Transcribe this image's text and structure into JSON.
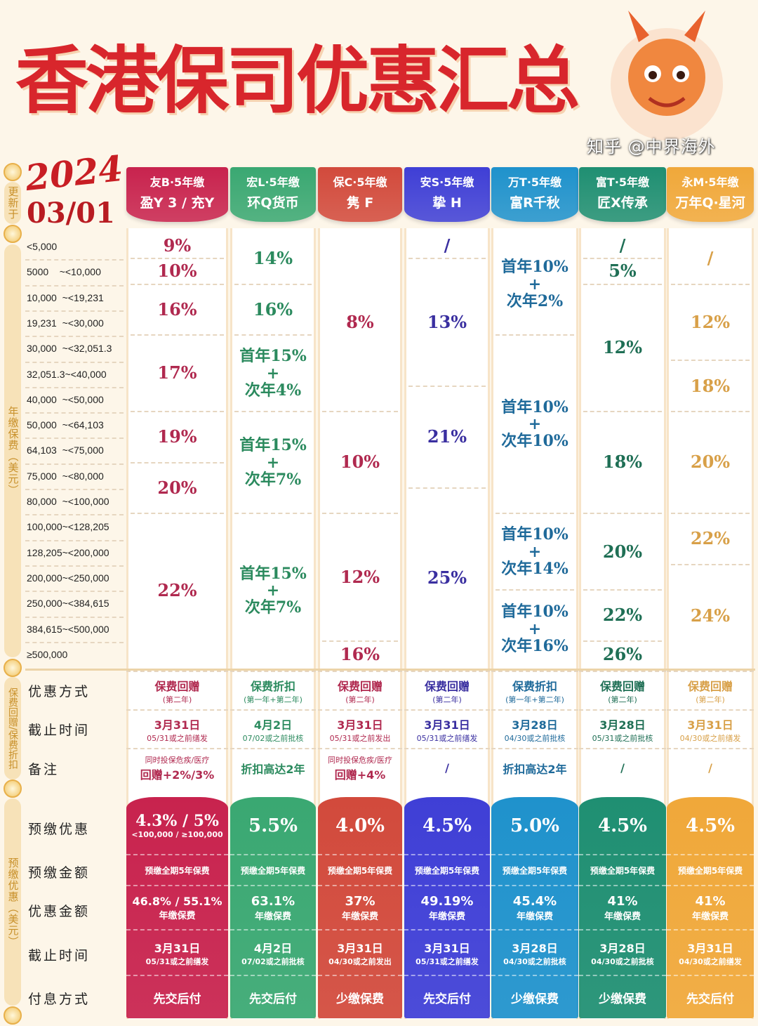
{
  "title": "香港保司优惠汇总",
  "updated_label": "更新于",
  "year": "2024",
  "date": "03/01",
  "section_labels": {
    "annual_premium": "年缴保费（美元）",
    "offers": "保费回赠/保费折扣",
    "prepay": "预缴优惠（美元）"
  },
  "tiers": [
    "<5,000",
    "5000    ~<10,000",
    "10,000  ~<19,231",
    "19,231  ~<30,000",
    "30,000  ~<32,051.3",
    "32,051.3~<40,000",
    "40,000  ~<50,000",
    "50,000  ~<64,103",
    "64,103  ~<75,000",
    "75,000  ~<80,000",
    "80,000  ~<100,000",
    "100,000~<128,205",
    "128,205~<200,000",
    "200,000~<250,000",
    "250,000~<384,615",
    "384,615~<500,000",
    "≥500,000"
  ],
  "row_labels": {
    "offer_type": "优惠方式",
    "deadline": "截止时间",
    "remark": "备注"
  },
  "prepay_labels": {
    "rate": "预缴优惠",
    "amount": "预缴金额",
    "benefit": "优惠金额",
    "deadline": "截止时间",
    "payout": "付息方式"
  },
  "products": [
    {
      "brand": "友B·5年缴",
      "plan": "盈Y 3 / 充Y",
      "color": "#c8234e",
      "text_color": "#b0294f",
      "tiers": [
        {
          "rows": [
            0,
            0
          ],
          "text": "9%"
        },
        {
          "rows": [
            1,
            1
          ],
          "text": "10%"
        },
        {
          "rows": [
            2,
            3
          ],
          "text": "16%"
        },
        {
          "rows": [
            4,
            6
          ],
          "text": "17%"
        },
        {
          "rows": [
            7,
            8
          ],
          "text": "19%"
        },
        {
          "rows": [
            9,
            10
          ],
          "text": "20%"
        },
        {
          "rows": [
            11,
            16
          ],
          "text": "22%"
        }
      ],
      "offer": {
        "type": "保费回赠",
        "note": "(第二年)"
      },
      "deadline": {
        "date": "3月31日",
        "note": "05/31或之前缮发"
      },
      "remark": {
        "small": "同时投保危疾/医疗",
        "big": "回赠+2%/3%"
      },
      "prepay": {
        "rate": "4.3% / 5%",
        "rate_note": "<100,000 / ≥100,000",
        "amount": "预缴全期5年保费",
        "benefit": "46.8% / 55.1%",
        "benefit_note": "年缴保费",
        "date": "3月31日",
        "date_note": "05/31或之前缮发",
        "payout": "先交后付"
      }
    },
    {
      "brand": "宏L·5年缴",
      "plan": "环Q货币",
      "color": "#3aa872",
      "text_color": "#2b8a5e",
      "tiers": [
        {
          "rows": [
            0,
            1
          ],
          "text": "14%"
        },
        {
          "rows": [
            2,
            3
          ],
          "text": "16%"
        },
        {
          "rows": [
            4,
            6
          ],
          "text": "首年15%\n+\n次年4%"
        },
        {
          "rows": [
            7,
            10
          ],
          "text": "首年15%\n+\n次年7%"
        },
        {
          "rows": [
            11,
            16
          ],
          "text": "首年15%\n+\n次年7%"
        }
      ],
      "offer": {
        "type": "保费折扣",
        "note": "(第一年+第二年)"
      },
      "deadline": {
        "date": "4月2日",
        "note": "07/02或之前批核"
      },
      "remark": {
        "small": "",
        "big": "折扣高达2年"
      },
      "prepay": {
        "rate": "5.5%",
        "rate_note": "",
        "amount": "预缴全期5年保费",
        "benefit": "63.1%",
        "benefit_note": "年缴保费",
        "date": "4月2日",
        "date_note": "07/02或之前批核",
        "payout": "先交后付"
      }
    },
    {
      "brand": "保C·5年缴",
      "plan": "隽 F",
      "color": "#d24a3c",
      "text_color": "#b0294f",
      "tiers": [
        {
          "rows": [
            0,
            6
          ],
          "text": "8%"
        },
        {
          "rows": [
            7,
            10
          ],
          "text": "10%"
        },
        {
          "rows": [
            11,
            15
          ],
          "text": "12%"
        },
        {
          "rows": [
            16,
            16
          ],
          "text": "16%"
        }
      ],
      "offer": {
        "type": "保费回赠",
        "note": "(第二年)"
      },
      "deadline": {
        "date": "3月31日",
        "note": "05/31或之前发出"
      },
      "remark": {
        "small": "同时投保危疾/医疗",
        "big": "回赠+4%"
      },
      "prepay": {
        "rate": "4.0%",
        "rate_note": "",
        "amount": "预缴全期5年保费",
        "benefit": "37%",
        "benefit_note": "年缴保费",
        "date": "3月31日",
        "date_note": "04/30或之前发出",
        "payout": "少缴保费"
      }
    },
    {
      "brand": "安S·5年缴",
      "plan": "挚 H",
      "color": "#3f3fd6",
      "text_color": "#3a2fa0",
      "tiers": [
        {
          "rows": [
            0,
            0
          ],
          "text": "/"
        },
        {
          "rows": [
            1,
            5
          ],
          "text": "13%"
        },
        {
          "rows": [
            6,
            9
          ],
          "text": "21%"
        },
        {
          "rows": [
            10,
            16
          ],
          "text": "25%"
        }
      ],
      "offer": {
        "type": "保费回赠",
        "note": "(第二年)"
      },
      "deadline": {
        "date": "3月31日",
        "note": "05/31或之前缮发"
      },
      "remark": {
        "small": "",
        "big": "/"
      },
      "prepay": {
        "rate": "4.5%",
        "rate_note": "",
        "amount": "预缴全期5年保费",
        "benefit": "49.19%",
        "benefit_note": "年缴保费",
        "date": "3月31日",
        "date_note": "05/31或之前缮发",
        "payout": "先交后付"
      }
    },
    {
      "brand": "万T·5年缴",
      "plan": "富R千秋",
      "color": "#1f92cc",
      "text_color": "#1f6a9a",
      "tiers": [
        {
          "rows": [
            0,
            3
          ],
          "text": "首年10%\n+\n次年2%"
        },
        {
          "rows": [
            4,
            10
          ],
          "text": "首年10%\n+\n次年10%"
        },
        {
          "rows": [
            11,
            13
          ],
          "text": "首年10%\n+\n次年14%"
        },
        {
          "rows": [
            14,
            16
          ],
          "text": "首年10%\n+\n次年16%"
        }
      ],
      "offer": {
        "type": "保费折扣",
        "note": "(第一年+第二年)"
      },
      "deadline": {
        "date": "3月28日",
        "note": "04/30或之前批核"
      },
      "remark": {
        "small": "",
        "big": "折扣高达2年"
      },
      "prepay": {
        "rate": "5.0%",
        "rate_note": "",
        "amount": "预缴全期5年保费",
        "benefit": "45.4%",
        "benefit_note": "年缴保费",
        "date": "3月28日",
        "date_note": "04/30或之前批核",
        "payout": "少缴保费"
      }
    },
    {
      "brand": "富T·5年缴",
      "plan": "匠X传承",
      "color": "#1f8f72",
      "text_color": "#1f6f55",
      "tiers": [
        {
          "rows": [
            0,
            0
          ],
          "text": "/"
        },
        {
          "rows": [
            1,
            1
          ],
          "text": "5%"
        },
        {
          "rows": [
            2,
            6
          ],
          "text": "12%"
        },
        {
          "rows": [
            7,
            10
          ],
          "text": "18%"
        },
        {
          "rows": [
            11,
            13
          ],
          "text": "20%"
        },
        {
          "rows": [
            14,
            15
          ],
          "text": "22%"
        },
        {
          "rows": [
            16,
            16
          ],
          "text": "26%"
        }
      ],
      "offer": {
        "type": "保费回赠",
        "note": "(第二年)"
      },
      "deadline": {
        "date": "3月28日",
        "note": "05/31或之前批核"
      },
      "remark": {
        "small": "",
        "big": "/"
      },
      "prepay": {
        "rate": "4.5%",
        "rate_note": "",
        "amount": "预缴全期5年保费",
        "benefit": "41%",
        "benefit_note": "年缴保费",
        "date": "3月28日",
        "date_note": "04/30或之前批核",
        "payout": "少缴保费"
      }
    },
    {
      "brand": "永M·5年缴",
      "plan": "万年Q·星河",
      "color": "#f0a83a",
      "text_color": "#d8a048",
      "tiers": [
        {
          "rows": [
            0,
            1
          ],
          "text": "/"
        },
        {
          "rows": [
            2,
            4
          ],
          "text": "12%"
        },
        {
          "rows": [
            5,
            6
          ],
          "text": "18%"
        },
        {
          "rows": [
            7,
            10
          ],
          "text": "20%"
        },
        {
          "rows": [
            11,
            12
          ],
          "text": "22%"
        },
        {
          "rows": [
            13,
            16
          ],
          "text": "24%"
        }
      ],
      "offer": {
        "type": "保费回赠",
        "note": "(第二年)"
      },
      "deadline": {
        "date": "3月31日",
        "note": "04/30或之前缮发"
      },
      "remark": {
        "small": "",
        "big": "/"
      },
      "prepay": {
        "rate": "4.5%",
        "rate_note": "",
        "amount": "预缴全期5年保费",
        "benefit": "41%",
        "benefit_note": "年缴保费",
        "date": "3月31日",
        "date_note": "04/30或之前缮发",
        "payout": "先交后付"
      }
    }
  ],
  "watermark": "知乎 @中界海外"
}
